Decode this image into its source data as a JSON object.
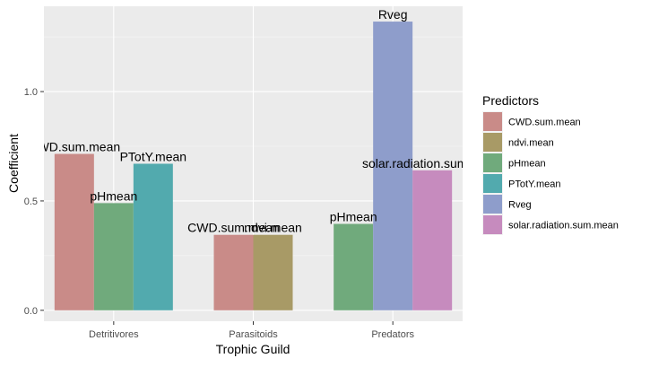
{
  "chart_data": {
    "type": "bar",
    "title": "",
    "xlabel": "Trophic Guild",
    "ylabel": "Coefficient",
    "ylim": [
      -0.05,
      1.39
    ],
    "yticks": [
      0.0,
      0.5,
      1.0
    ],
    "ytick_labels": [
      "0.0",
      "0.5",
      "1.0"
    ],
    "categories": [
      "Detritivores",
      "Parasitoids",
      "Predators"
    ],
    "grid": true,
    "legend": {
      "title": "Predictors",
      "placement": "right",
      "entries": [
        {
          "name": "CWD.sum.mean",
          "color": "#C98B88"
        },
        {
          "name": "ndvi.mean",
          "color": "#A89A66"
        },
        {
          "name": "pHmean",
          "color": "#70AA7C"
        },
        {
          "name": "PTotY.mean",
          "color": "#52AAAE"
        },
        {
          "name": "Rveg",
          "color": "#8E9DCB"
        },
        {
          "name": "solar.radiation.sum.mean",
          "color": "#C68BBE"
        }
      ]
    },
    "groups": [
      {
        "category": "Detritivores",
        "bars": [
          {
            "predictor": "CWD.sum.mean",
            "value": 0.715,
            "label": "CWD.sum.mean"
          },
          {
            "predictor": "pHmean",
            "value": 0.49,
            "label": "pHmean"
          },
          {
            "predictor": "PTotY.mean",
            "value": 0.67,
            "label": "PTotY.mean"
          }
        ]
      },
      {
        "category": "Parasitoids",
        "bars": [
          {
            "predictor": "CWD.sum.mean",
            "value": 0.345,
            "label": "CWD.sum.mean"
          },
          {
            "predictor": "ndvi.mean",
            "value": 0.345,
            "label": "ndvi.mean"
          }
        ]
      },
      {
        "category": "Predators",
        "bars": [
          {
            "predictor": "pHmean",
            "value": 0.395,
            "label": "pHmean"
          },
          {
            "predictor": "Rveg",
            "value": 1.32,
            "label": "Rveg"
          },
          {
            "predictor": "solar.radiation.sum.mean",
            "value": 0.64,
            "label": "solar.radiation.sum.mean"
          }
        ]
      }
    ]
  }
}
